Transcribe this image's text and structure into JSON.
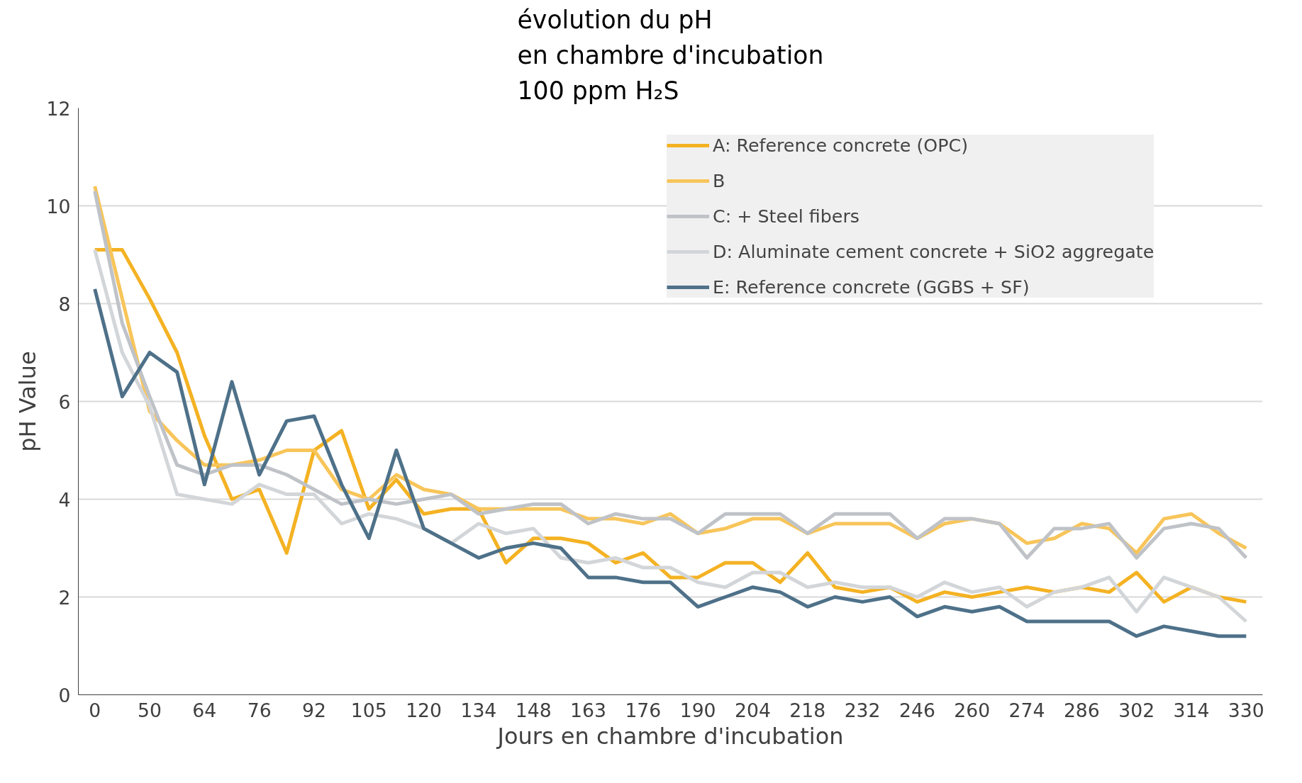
{
  "chart_data": {
    "type": "line",
    "title": "évolution du pH\nen chambre d'incubation\n100 ppm H₂S",
    "xlabel": "Jours en chambre d'incubation",
    "ylabel": "pH Value",
    "categories": [
      "0",
      null,
      "50",
      null,
      "64",
      null,
      "76",
      null,
      "92",
      null,
      "105",
      null,
      "120",
      null,
      "134",
      null,
      "148",
      null,
      "163",
      null,
      "176",
      null,
      "190",
      null,
      "204",
      null,
      "218",
      null,
      "232",
      null,
      "246",
      null,
      "260",
      null,
      "274",
      null,
      "286",
      null,
      "302",
      null,
      "314",
      null,
      "330"
    ],
    "series": [
      {
        "name": "A: Reference concrete (OPC)",
        "color": "#f4b223",
        "values": [
          9.1,
          9.1,
          8.1,
          7.0,
          5.3,
          4.0,
          4.2,
          2.9,
          5.0,
          5.4,
          3.8,
          4.4,
          3.7,
          3.8,
          3.8,
          2.7,
          3.2,
          3.2,
          3.1,
          2.7,
          2.9,
          2.4,
          2.4,
          2.7,
          2.7,
          2.3,
          2.9,
          2.2,
          2.1,
          2.2,
          1.9,
          2.1,
          2.0,
          2.1,
          2.2,
          2.1,
          2.2,
          2.1,
          2.5,
          1.9,
          2.2,
          2.0,
          1.9
        ]
      },
      {
        "name": "B",
        "color": "#f8c55a",
        "values": [
          10.4,
          8.1,
          5.8,
          5.2,
          4.7,
          4.7,
          4.8,
          5.0,
          5.0,
          4.2,
          4.0,
          4.5,
          4.2,
          4.1,
          3.8,
          3.8,
          3.8,
          3.8,
          3.6,
          3.6,
          3.5,
          3.7,
          3.3,
          3.4,
          3.6,
          3.6,
          3.3,
          3.5,
          3.5,
          3.5,
          3.2,
          3.5,
          3.6,
          3.5,
          3.1,
          3.2,
          3.5,
          3.4,
          2.9,
          3.6,
          3.7,
          3.3,
          3.0
        ]
      },
      {
        "name": "C: + Steel fibers",
        "color": "#bfc3c8",
        "values": [
          10.3,
          7.6,
          6.1,
          4.7,
          4.5,
          4.7,
          4.7,
          4.5,
          4.2,
          3.9,
          4.0,
          3.9,
          4.0,
          4.1,
          3.7,
          3.8,
          3.9,
          3.9,
          3.5,
          3.7,
          3.6,
          3.6,
          3.3,
          3.7,
          3.7,
          3.7,
          3.3,
          3.7,
          3.7,
          3.7,
          3.2,
          3.6,
          3.6,
          3.5,
          2.8,
          3.4,
          3.4,
          3.5,
          2.8,
          3.4,
          3.5,
          3.4,
          2.8
        ]
      },
      {
        "name": "D: Aluminate cement concrete + SiO2 aggregate",
        "color": "#d3d6d9",
        "values": [
          9.1,
          7.0,
          5.9,
          4.1,
          4.0,
          3.9,
          4.3,
          4.1,
          4.1,
          3.5,
          3.7,
          3.6,
          3.4,
          3.1,
          3.5,
          3.3,
          3.4,
          2.8,
          2.7,
          2.8,
          2.6,
          2.6,
          2.3,
          2.2,
          2.5,
          2.5,
          2.2,
          2.3,
          2.2,
          2.2,
          2.0,
          2.3,
          2.1,
          2.2,
          1.8,
          2.1,
          2.2,
          2.4,
          1.7,
          2.4,
          2.2,
          2.0,
          1.5
        ]
      },
      {
        "name": "E: Reference concrete (GGBS + SF)",
        "color": "#4e7189",
        "values": [
          8.3,
          6.1,
          7.0,
          6.6,
          4.3,
          6.4,
          4.5,
          5.6,
          5.7,
          4.3,
          3.2,
          5.0,
          3.4,
          3.1,
          2.8,
          3.0,
          3.1,
          3.0,
          2.4,
          2.4,
          2.3,
          2.3,
          1.8,
          2.0,
          2.2,
          2.1,
          1.8,
          2.0,
          1.9,
          2.0,
          1.6,
          1.8,
          1.7,
          1.8,
          1.5,
          1.5,
          1.5,
          1.5,
          1.2,
          1.4,
          1.3,
          1.2,
          1.2
        ]
      }
    ],
    "ylim": [
      0,
      12
    ],
    "yticks": [
      0,
      2,
      4,
      6,
      8,
      10,
      12
    ],
    "grid": "y",
    "legend": "top right"
  }
}
